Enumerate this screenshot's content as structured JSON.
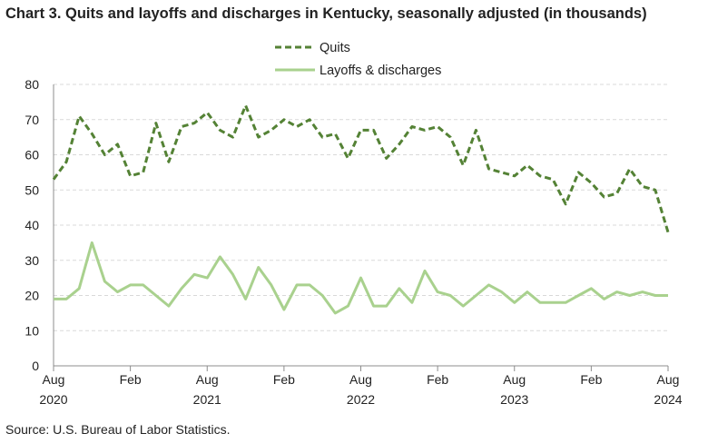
{
  "chart_data": {
    "type": "line",
    "title": "Chart 3. Quits and layoffs and discharges in Kentucky, seasonally adjusted (in thousands)",
    "source": "Source: U.S. Bureau of Labor Statistics.",
    "x_start": "2020-08",
    "x": [
      "Aug 2020",
      "Sep 2020",
      "Oct 2020",
      "Nov 2020",
      "Dec 2020",
      "Jan 2021",
      "Feb 2021",
      "Mar 2021",
      "Apr 2021",
      "May 2021",
      "Jun 2021",
      "Jul 2021",
      "Aug 2021",
      "Sep 2021",
      "Oct 2021",
      "Nov 2021",
      "Dec 2021",
      "Jan 2022",
      "Feb 2022",
      "Mar 2022",
      "Apr 2022",
      "May 2022",
      "Jun 2022",
      "Jul 2022",
      "Aug 2022",
      "Sep 2022",
      "Oct 2022",
      "Nov 2022",
      "Dec 2022",
      "Jan 2023",
      "Feb 2023",
      "Mar 2023",
      "Apr 2023",
      "May 2023",
      "Jun 2023",
      "Jul 2023",
      "Aug 2023",
      "Sep 2023",
      "Oct 2023",
      "Nov 2023",
      "Dec 2023",
      "Jan 2024",
      "Feb 2024",
      "Mar 2024",
      "Apr 2024",
      "May 2024",
      "Jun 2024",
      "Jul 2024",
      "Aug 2024"
    ],
    "x_tick_labels": [
      {
        "month": "Aug",
        "year": "2020",
        "index": 0
      },
      {
        "month": "Feb",
        "year": "",
        "index": 6
      },
      {
        "month": "Aug",
        "year": "2021",
        "index": 12
      },
      {
        "month": "Feb",
        "year": "",
        "index": 18
      },
      {
        "month": "Aug",
        "year": "2022",
        "index": 24
      },
      {
        "month": "Feb",
        "year": "",
        "index": 30
      },
      {
        "month": "Aug",
        "year": "2023",
        "index": 36
      },
      {
        "month": "Feb",
        "year": "",
        "index": 42
      },
      {
        "month": "Aug",
        "year": "2024",
        "index": 48
      }
    ],
    "y_ticks": [
      0,
      10,
      20,
      30,
      40,
      50,
      60,
      70,
      80
    ],
    "ylim": [
      0,
      80
    ],
    "grid": "horizontal dashed",
    "legend_position": "top-center",
    "series": [
      {
        "name": "Quits",
        "style": "dashed",
        "color": "#548235",
        "values": [
          53,
          58,
          71,
          66,
          60,
          63,
          54,
          55,
          69,
          58,
          68,
          69,
          72,
          67,
          65,
          74,
          65,
          67,
          70,
          68,
          70,
          65,
          66,
          59,
          67,
          67,
          59,
          63,
          68,
          67,
          68,
          65,
          57,
          67,
          56,
          55,
          54,
          57,
          54,
          53,
          46,
          55,
          52,
          48,
          49,
          56,
          51,
          50,
          38
        ]
      },
      {
        "name": "Layoffs & discharges",
        "style": "solid",
        "color": "#A9D18E",
        "values": [
          19,
          19,
          22,
          35,
          24,
          21,
          23,
          23,
          20,
          17,
          22,
          26,
          25,
          31,
          26,
          19,
          28,
          23,
          16,
          23,
          23,
          20,
          15,
          17,
          25,
          17,
          17,
          22,
          18,
          27,
          21,
          20,
          17,
          20,
          23,
          21,
          18,
          21,
          18,
          18,
          18,
          20,
          22,
          19,
          21,
          20,
          21,
          20,
          20
        ]
      }
    ]
  }
}
